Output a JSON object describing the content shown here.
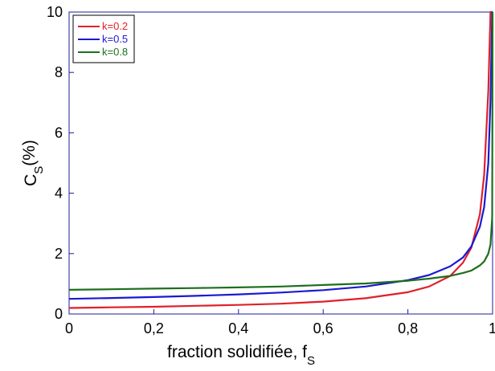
{
  "chart_data": {
    "type": "line",
    "xlabel": {
      "main": "fraction solidifiée, f",
      "sub": "S"
    },
    "ylabel": {
      "main": "C",
      "sub": "S",
      "suffix": "(%)"
    },
    "xlim": [
      0,
      1
    ],
    "ylim": [
      0,
      10
    ],
    "x_ticks": [
      0,
      0.2,
      0.4,
      0.6,
      0.8,
      1
    ],
    "x_tick_labels": [
      "0",
      "0,2",
      "0,4",
      "0,6",
      "0,8",
      "1"
    ],
    "y_ticks": [
      0,
      2,
      4,
      6,
      8,
      10
    ],
    "y_tick_labels": [
      "0",
      "2",
      "4",
      "6",
      "8",
      "10"
    ],
    "grid": false,
    "legend_position": "top-left",
    "x": [
      0,
      0.1,
      0.2,
      0.3,
      0.4,
      0.5,
      0.6,
      0.7,
      0.8,
      0.85,
      0.9,
      0.93,
      0.95,
      0.97,
      0.98,
      0.99,
      0.995,
      0.999,
      1
    ],
    "series": [
      {
        "name": "k=0.2",
        "color": "#e0202a",
        "values": [
          0.2,
          0.22,
          0.24,
          0.27,
          0.3,
          0.34,
          0.41,
          0.52,
          0.72,
          0.91,
          1.26,
          1.7,
          2.2,
          3.3,
          4.6,
          7.4,
          10,
          10,
          10
        ]
      },
      {
        "name": "k=0.5",
        "color": "#1a1ad0",
        "values": [
          0.5,
          0.53,
          0.56,
          0.6,
          0.65,
          0.71,
          0.79,
          0.91,
          1.12,
          1.29,
          1.58,
          1.87,
          2.24,
          2.89,
          3.54,
          5.0,
          7.1,
          10,
          10
        ]
      },
      {
        "name": "k=0.8",
        "color": "#1e6e1e",
        "values": [
          0.8,
          0.82,
          0.84,
          0.86,
          0.88,
          0.91,
          0.96,
          1.01,
          1.1,
          1.17,
          1.26,
          1.36,
          1.44,
          1.61,
          1.74,
          2.0,
          2.3,
          3.2,
          10
        ]
      }
    ]
  }
}
